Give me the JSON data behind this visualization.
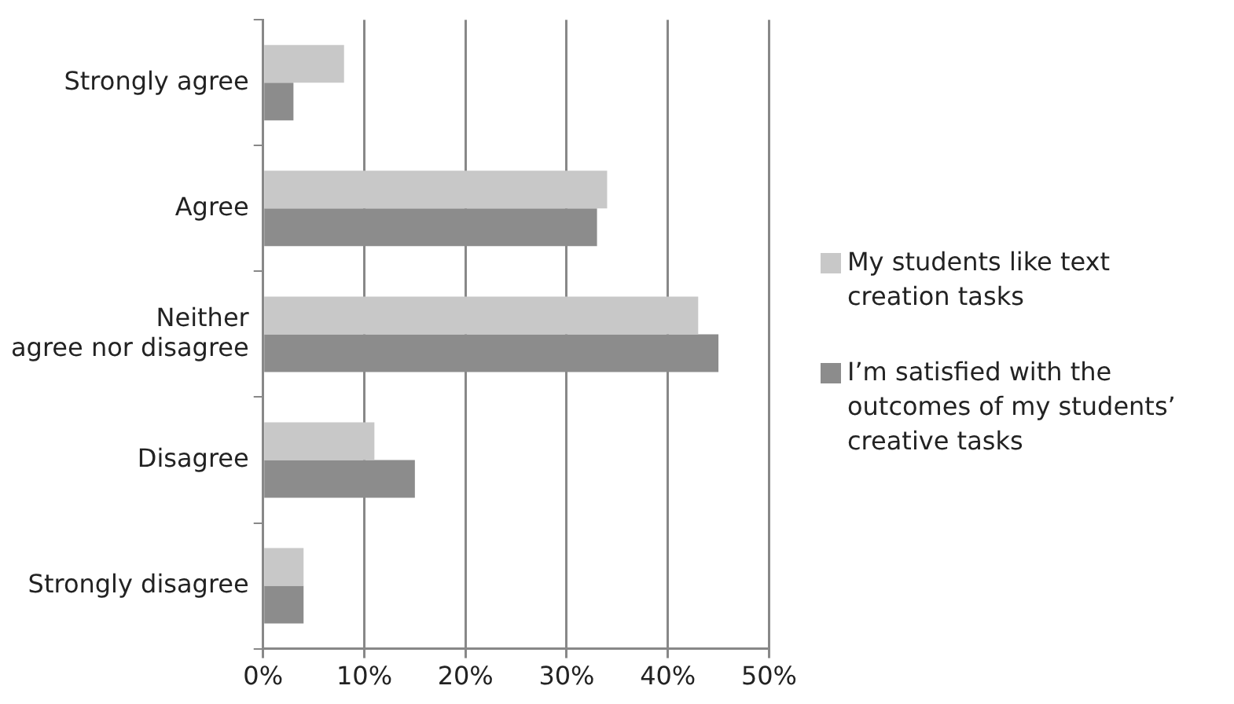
{
  "chart_data": {
    "type": "bar",
    "orientation": "horizontal",
    "categories": [
      "Strongly agree",
      "Agree",
      "Neither\nagree nor disagree",
      "Disagree",
      "Strongly disagree"
    ],
    "series": [
      {
        "name": "My students like text creation tasks",
        "color": "#c8c8c8",
        "values": [
          8,
          34,
          43,
          11,
          4
        ]
      },
      {
        "name": "I’m satisfied with the outcomes of my students’ creative tasks",
        "color": "#8c8c8c",
        "values": [
          3,
          33,
          45,
          15,
          4
        ]
      }
    ],
    "xlim": [
      0,
      50
    ],
    "xticks": [
      {
        "value": 0,
        "label": "0%"
      },
      {
        "value": 10,
        "label": "10%"
      },
      {
        "value": 20,
        "label": "20%"
      },
      {
        "value": 30,
        "label": "30%"
      },
      {
        "value": 40,
        "label": "40%"
      },
      {
        "value": 50,
        "label": "50%"
      }
    ],
    "grid": "x",
    "legend": "right"
  }
}
